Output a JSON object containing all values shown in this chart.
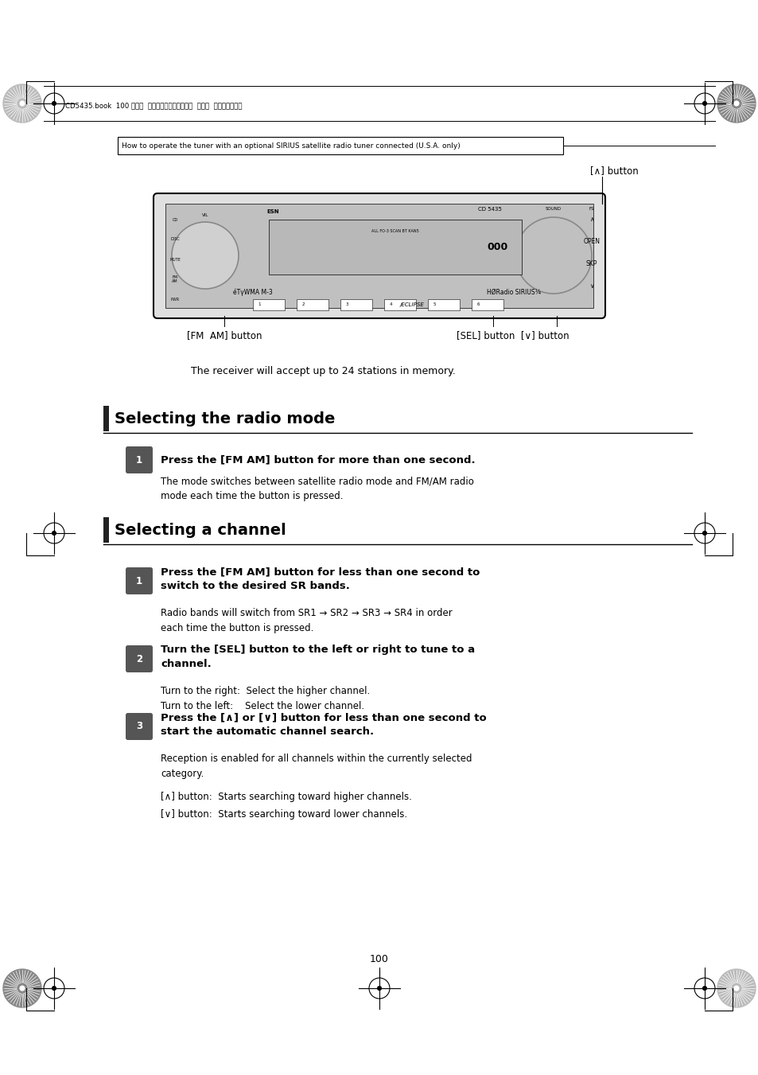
{
  "bg_color": "#ffffff",
  "page_width": 9.54,
  "page_height": 13.51,
  "header_japanese": "CD5435.book  100 ページ  ２００４年１２月１１日  土曜日  午後５時２９分",
  "note_box_text": "How to operate the tuner with an optional SIRIUS satellite radio tuner connected (U.S.A. only)",
  "label_up_button": "[∧] button",
  "label_fm_am": "[FM  AM] button",
  "label_sel": "[SEL] button  [∨] button",
  "intro_text": "The receiver will accept up to 24 stations in memory.",
  "section1_title": "Selecting the radio mode",
  "section1_step1_bold": "Press the [FM AM] button for more than one second.",
  "section1_step1_body": "The mode switches between satellite radio mode and FM/AM radio\nmode each time the button is pressed.",
  "section2_title": "Selecting a channel",
  "section2_step1_bold": "Press the [FM AM] button for less than one second to\nswitch to the desired SR bands.",
  "section2_step1_body": "Radio bands will switch from SR1 → SR2 → SR3 → SR4 in order\neach time the button is pressed.",
  "section2_step2_bold": "Turn the [SEL] button to the left or right to tune to a\nchannel.",
  "section2_step2_body": "Turn to the right:  Select the higher channel.\nTurn to the left:    Select the lower channel.",
  "section2_step3_bold": "Press the [∧] or [∨] button for less than one second to\nstart the automatic channel search.",
  "section2_step3_body": "Reception is enabled for all channels within the currently selected\ncategory.",
  "section2_step3_note1": "[∧] button:  Starts searching toward higher channels.",
  "section2_step3_note2": "[∨] button:  Starts searching toward lower channels.",
  "page_number": "100"
}
